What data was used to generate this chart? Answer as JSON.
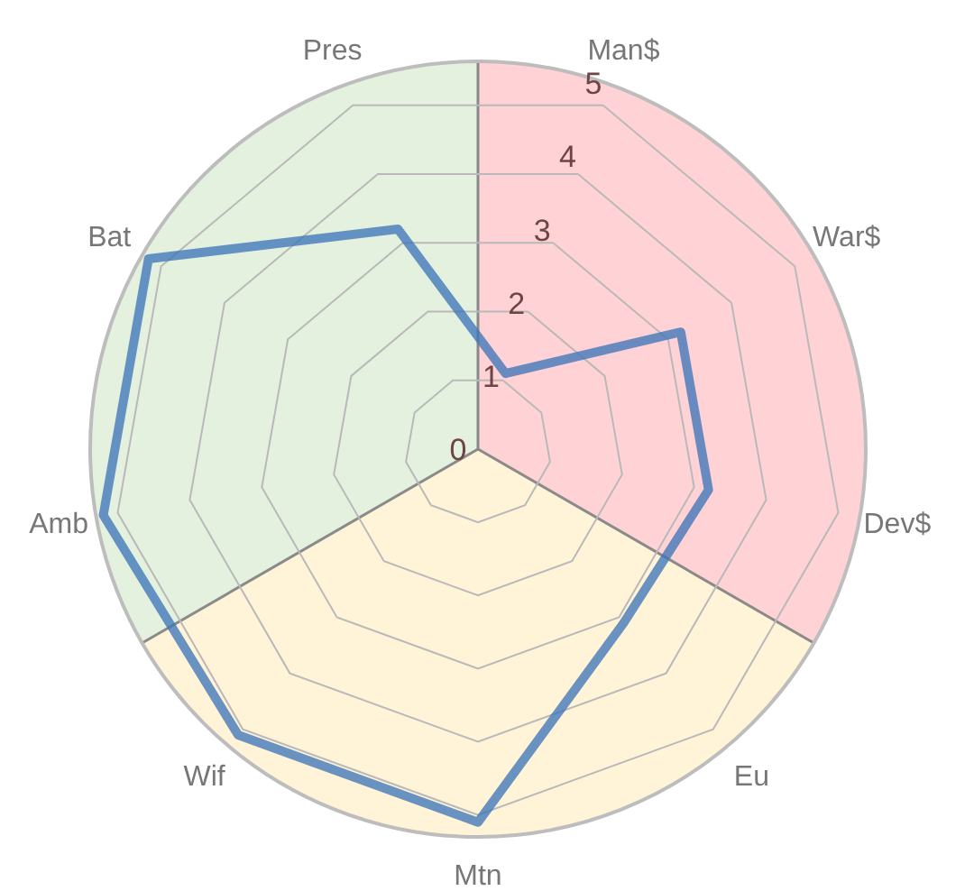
{
  "chart_data": {
    "type": "radar",
    "categories": [
      "Man$",
      "War$",
      "Dev$",
      "Eu",
      "Mtn",
      "Wif",
      "Amb",
      "Bat",
      "Pres"
    ],
    "series": [
      {
        "color": "#3f76b8",
        "values": [
          1.1,
          3.2,
          3.2,
          3.1,
          5.1,
          5.1,
          5.2,
          5.2,
          3.2
        ]
      }
    ],
    "ylim": [
      0,
      5.3
    ],
    "yticks": [
      0,
      1,
      2,
      3,
      4,
      5
    ],
    "grid": true
  }
}
